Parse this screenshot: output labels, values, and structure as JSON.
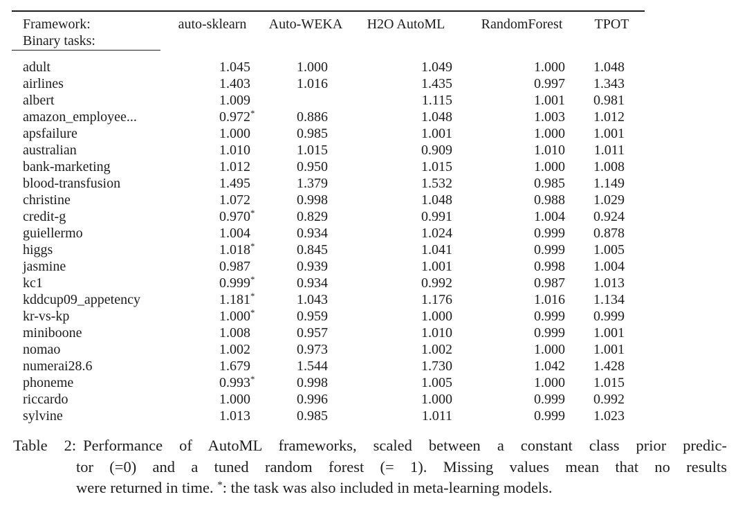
{
  "colors": {
    "background": "#ffffff",
    "text": "#1d1d1d",
    "rule": "#1d1d1d"
  },
  "table": {
    "header": {
      "row_label_line1": "Framework:",
      "row_label_line2": "Binary tasks:",
      "columns": [
        "auto-sklearn",
        "Auto-WEKA",
        "H2O AutoML",
        "RandomForest",
        "TPOT"
      ]
    },
    "star_note_marker": "*",
    "rows": [
      {
        "task": "adult",
        "star": false,
        "values": [
          "1.045",
          "1.000",
          "1.049",
          "1.000",
          "1.048"
        ]
      },
      {
        "task": "airlines",
        "star": false,
        "values": [
          "1.403",
          "1.016",
          "1.435",
          "0.997",
          "1.343"
        ]
      },
      {
        "task": "albert",
        "star": false,
        "values": [
          "1.009",
          "",
          "1.115",
          "1.001",
          "0.981"
        ]
      },
      {
        "task": "amazon_employee...",
        "star": true,
        "values": [
          "0.972",
          "0.886",
          "1.048",
          "1.003",
          "1.012"
        ]
      },
      {
        "task": "apsfailure",
        "star": false,
        "values": [
          "1.000",
          "0.985",
          "1.001",
          "1.000",
          "1.001"
        ]
      },
      {
        "task": "australian",
        "star": false,
        "values": [
          "1.010",
          "1.015",
          "0.909",
          "1.010",
          "1.011"
        ]
      },
      {
        "task": "bank-marketing",
        "star": false,
        "values": [
          "1.012",
          "0.950",
          "1.015",
          "1.000",
          "1.008"
        ]
      },
      {
        "task": "blood-transfusion",
        "star": false,
        "values": [
          "1.495",
          "1.379",
          "1.532",
          "0.985",
          "1.149"
        ]
      },
      {
        "task": "christine",
        "star": false,
        "values": [
          "1.072",
          "0.998",
          "1.048",
          "0.988",
          "1.029"
        ]
      },
      {
        "task": "credit-g",
        "star": true,
        "values": [
          "0.970",
          "0.829",
          "0.991",
          "1.004",
          "0.924"
        ]
      },
      {
        "task": "guiellermo",
        "star": false,
        "values": [
          "1.004",
          "0.934",
          "1.024",
          "0.999",
          "0.878"
        ]
      },
      {
        "task": "higgs",
        "star": true,
        "values": [
          "1.018",
          "0.845",
          "1.041",
          "0.999",
          "1.005"
        ]
      },
      {
        "task": "jasmine",
        "star": false,
        "values": [
          "0.987",
          "0.939",
          "1.001",
          "0.998",
          "1.004"
        ]
      },
      {
        "task": "kc1",
        "star": true,
        "values": [
          "0.999",
          "0.934",
          "0.992",
          "0.987",
          "1.013"
        ]
      },
      {
        "task": "kddcup09_appetency",
        "star": true,
        "values": [
          "1.181",
          "1.043",
          "1.176",
          "1.016",
          "1.134"
        ]
      },
      {
        "task": "kr-vs-kp",
        "star": true,
        "values": [
          "1.000",
          "0.959",
          "1.000",
          "0.999",
          "0.999"
        ]
      },
      {
        "task": "miniboone",
        "star": false,
        "values": [
          "1.008",
          "0.957",
          "1.010",
          "0.999",
          "1.001"
        ]
      },
      {
        "task": "nomao",
        "star": false,
        "values": [
          "1.002",
          "0.973",
          "1.002",
          "1.000",
          "1.001"
        ]
      },
      {
        "task": "numerai28.6",
        "star": false,
        "values": [
          "1.679",
          "1.544",
          "1.730",
          "1.042",
          "1.428"
        ]
      },
      {
        "task": "phoneme",
        "star": true,
        "values": [
          "0.993",
          "0.998",
          "1.005",
          "1.000",
          "1.015"
        ]
      },
      {
        "task": "riccardo",
        "star": false,
        "values": [
          "1.000",
          "0.996",
          "1.000",
          "0.999",
          "0.992"
        ]
      },
      {
        "task": "sylvine",
        "star": false,
        "values": [
          "1.013",
          "0.985",
          "1.011",
          "0.999",
          "1.023"
        ]
      }
    ]
  },
  "caption": {
    "label": "Table 2:",
    "line1_text": "Performance of AutoML frameworks, scaled between a constant class prior predic-",
    "line2": "tor (=0) and a tuned random forest (= 1). Missing values mean that no results",
    "line3_pre": "were returned in time. ",
    "line3_star": "*",
    "line3_post": ": the task was also included in meta-learning models."
  }
}
